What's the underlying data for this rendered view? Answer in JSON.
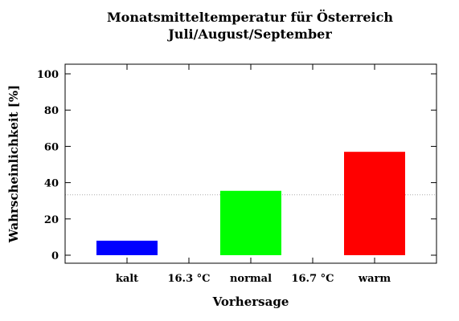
{
  "chart_data": {
    "type": "bar",
    "title": "Monatsmitteltemperatur für Österreich",
    "subtitle": "Juli/August/September",
    "xlabel": "Vorhersage",
    "ylabel": "Wahrscheinlichkeit [%]",
    "ylim": [
      0,
      100
    ],
    "yticks": [
      0,
      20,
      40,
      60,
      80,
      100
    ],
    "categories": [
      "kalt",
      "normal",
      "warm"
    ],
    "values": [
      8,
      35.5,
      57
    ],
    "colors": [
      "#0000ff",
      "#00ff00",
      "#ff0000"
    ],
    "thresholds": [
      "16.3 °C",
      "16.7 °C"
    ],
    "reference_line": 33.3,
    "grid": false
  }
}
